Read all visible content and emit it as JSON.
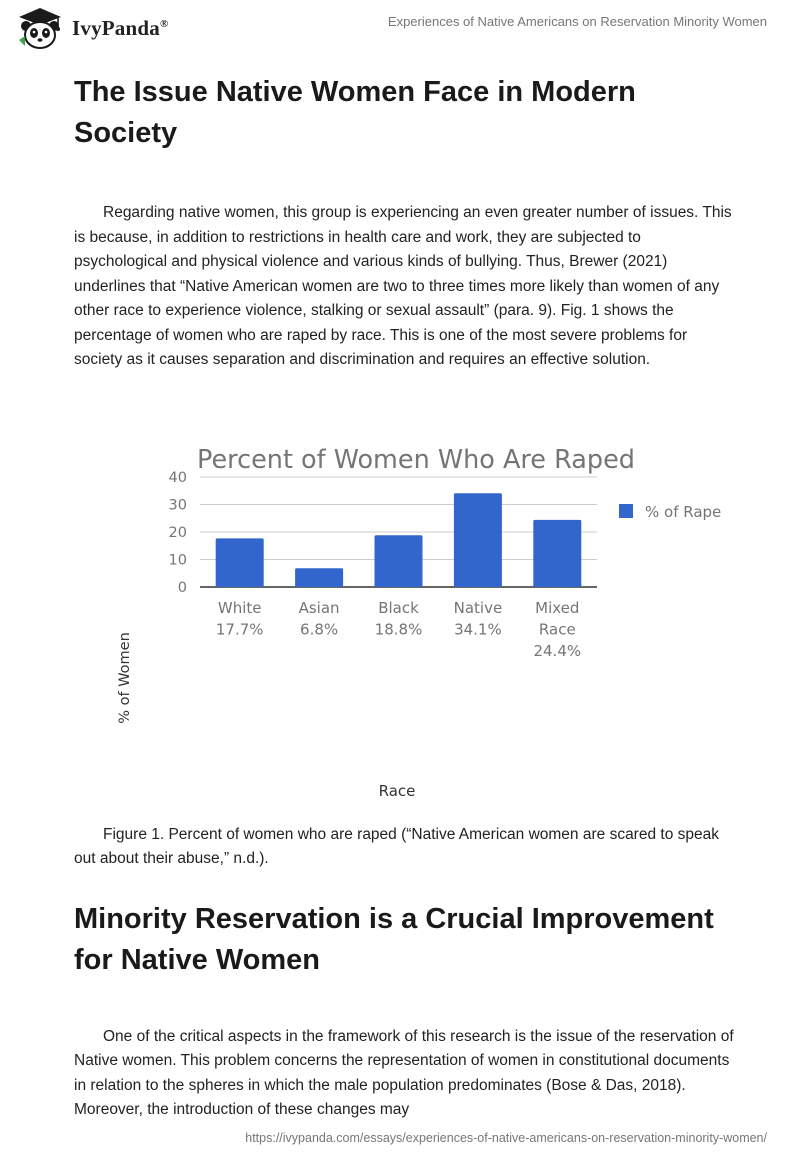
{
  "header": {
    "brand": "IvyPanda",
    "brand_mark": "®",
    "doc_title": "Experiences of Native Americans on Reservation Minority Women"
  },
  "section1": {
    "heading": "The Issue Native Women Face in Modern Society",
    "paragraph": "Regarding native women, this group is experiencing an even greater number of issues. This is because, in addition to restrictions in health care and work, they are subjected to psychological and physical violence and various kinds of bullying. Thus, Brewer (2021) underlines that “Native American women are two to three times more likely than women of any other race to experience violence, stalking or sexual assault” (para. 9). Fig. 1 shows the percentage of women who are raped by race. This is one of the most severe problems for society as it causes separation and discrimination and requires an effective solution."
  },
  "chart_data": {
    "type": "bar",
    "title": "Percent of Women Who Are Raped",
    "xlabel": "Race",
    "ylabel": "% of Women",
    "legend": "% of Rape",
    "legend_position": "top-right",
    "categories": [
      [
        "White",
        "17.7%"
      ],
      [
        "Asian",
        "6.8%"
      ],
      [
        "Black",
        "18.8%"
      ],
      [
        "Native",
        "34.1%"
      ],
      [
        "Mixed",
        "Race",
        "24.4%"
      ]
    ],
    "values": [
      17.7,
      6.8,
      18.8,
      34.1,
      24.4
    ],
    "yticks": [
      0,
      10,
      20,
      30,
      40
    ],
    "ylim": [
      0,
      40
    ],
    "grid": true,
    "bar_color": "#3366cc"
  },
  "figure": {
    "caption": "Figure 1. Percent of women who are raped (“Native American women are scared to speak out about their abuse,” n.d.)."
  },
  "section2": {
    "heading": "Minority Reservation is a Crucial Improvement for Native Women",
    "paragraph": "One of the critical aspects in the framework of this research is the issue of the reservation of Native women. This problem concerns the representation of women in constitutional documents in relation to the spheres in which the male population predominates (Bose & Das, 2018). Moreover, the introduction of these changes may"
  },
  "footer": {
    "url": "https://ivypanda.com/essays/experiences-of-native-americans-on-reservation-minority-women/"
  }
}
